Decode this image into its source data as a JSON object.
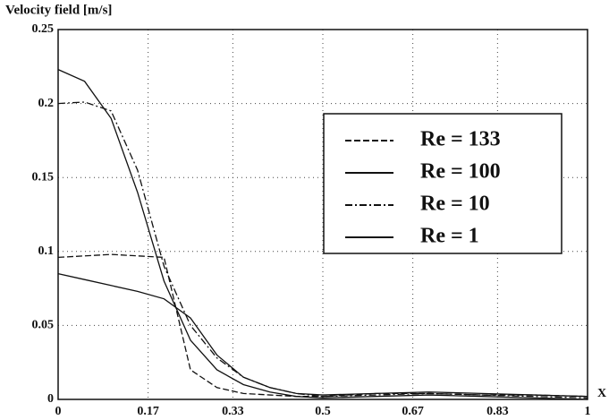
{
  "chart_data": {
    "type": "line",
    "title": "Velocity field [m/s]",
    "x_label": "X",
    "x": [
      0,
      0.05,
      0.1,
      0.15,
      0.2,
      0.25,
      0.3,
      0.35,
      0.4,
      0.45,
      0.5,
      0.6,
      0.7,
      0.8,
      0.9,
      1
    ],
    "series": [
      {
        "name": "Re = 133",
        "color": "#111111",
        "line_style": "dashed",
        "values": [
          0.096,
          0.097,
          0.098,
          0.097,
          0.096,
          0.02,
          0.008,
          0.004,
          0.003,
          0.002,
          0.002,
          0.004,
          0.004,
          0.003,
          0.003,
          0.002
        ]
      },
      {
        "name": "Re = 100",
        "color": "#111111",
        "line_style": "solid",
        "values": [
          0.085,
          0.081,
          0.077,
          0.073,
          0.068,
          0.055,
          0.03,
          0.015,
          0.008,
          0.004,
          0.003,
          0.004,
          0.005,
          0.004,
          0.003,
          0.002
        ]
      },
      {
        "name": "Re = 10",
        "color": "#111111",
        "line_style": "dashdot",
        "values": [
          0.2,
          0.201,
          0.195,
          0.155,
          0.09,
          0.05,
          0.028,
          0.015,
          0.008,
          0.004,
          0.002,
          0.003,
          0.004,
          0.003,
          0.002,
          0.001
        ]
      },
      {
        "name": "Re = 1",
        "color": "#111111",
        "line_style": "solid",
        "values": [
          0.223,
          0.215,
          0.19,
          0.14,
          0.08,
          0.04,
          0.02,
          0.01,
          0.005,
          0.002,
          0.001,
          0.002,
          0.003,
          0.002,
          0.001,
          0
        ]
      }
    ],
    "xlim": [
      0,
      1
    ],
    "xticks": [
      0,
      0.17,
      0.33,
      0.5,
      0.67,
      0.83,
      1
    ],
    "ylim": [
      0,
      0.25
    ],
    "yticks": [
      0,
      0.05,
      0.1,
      0.15,
      0.2,
      0.25
    ],
    "grid": true,
    "legend": "upper right"
  }
}
